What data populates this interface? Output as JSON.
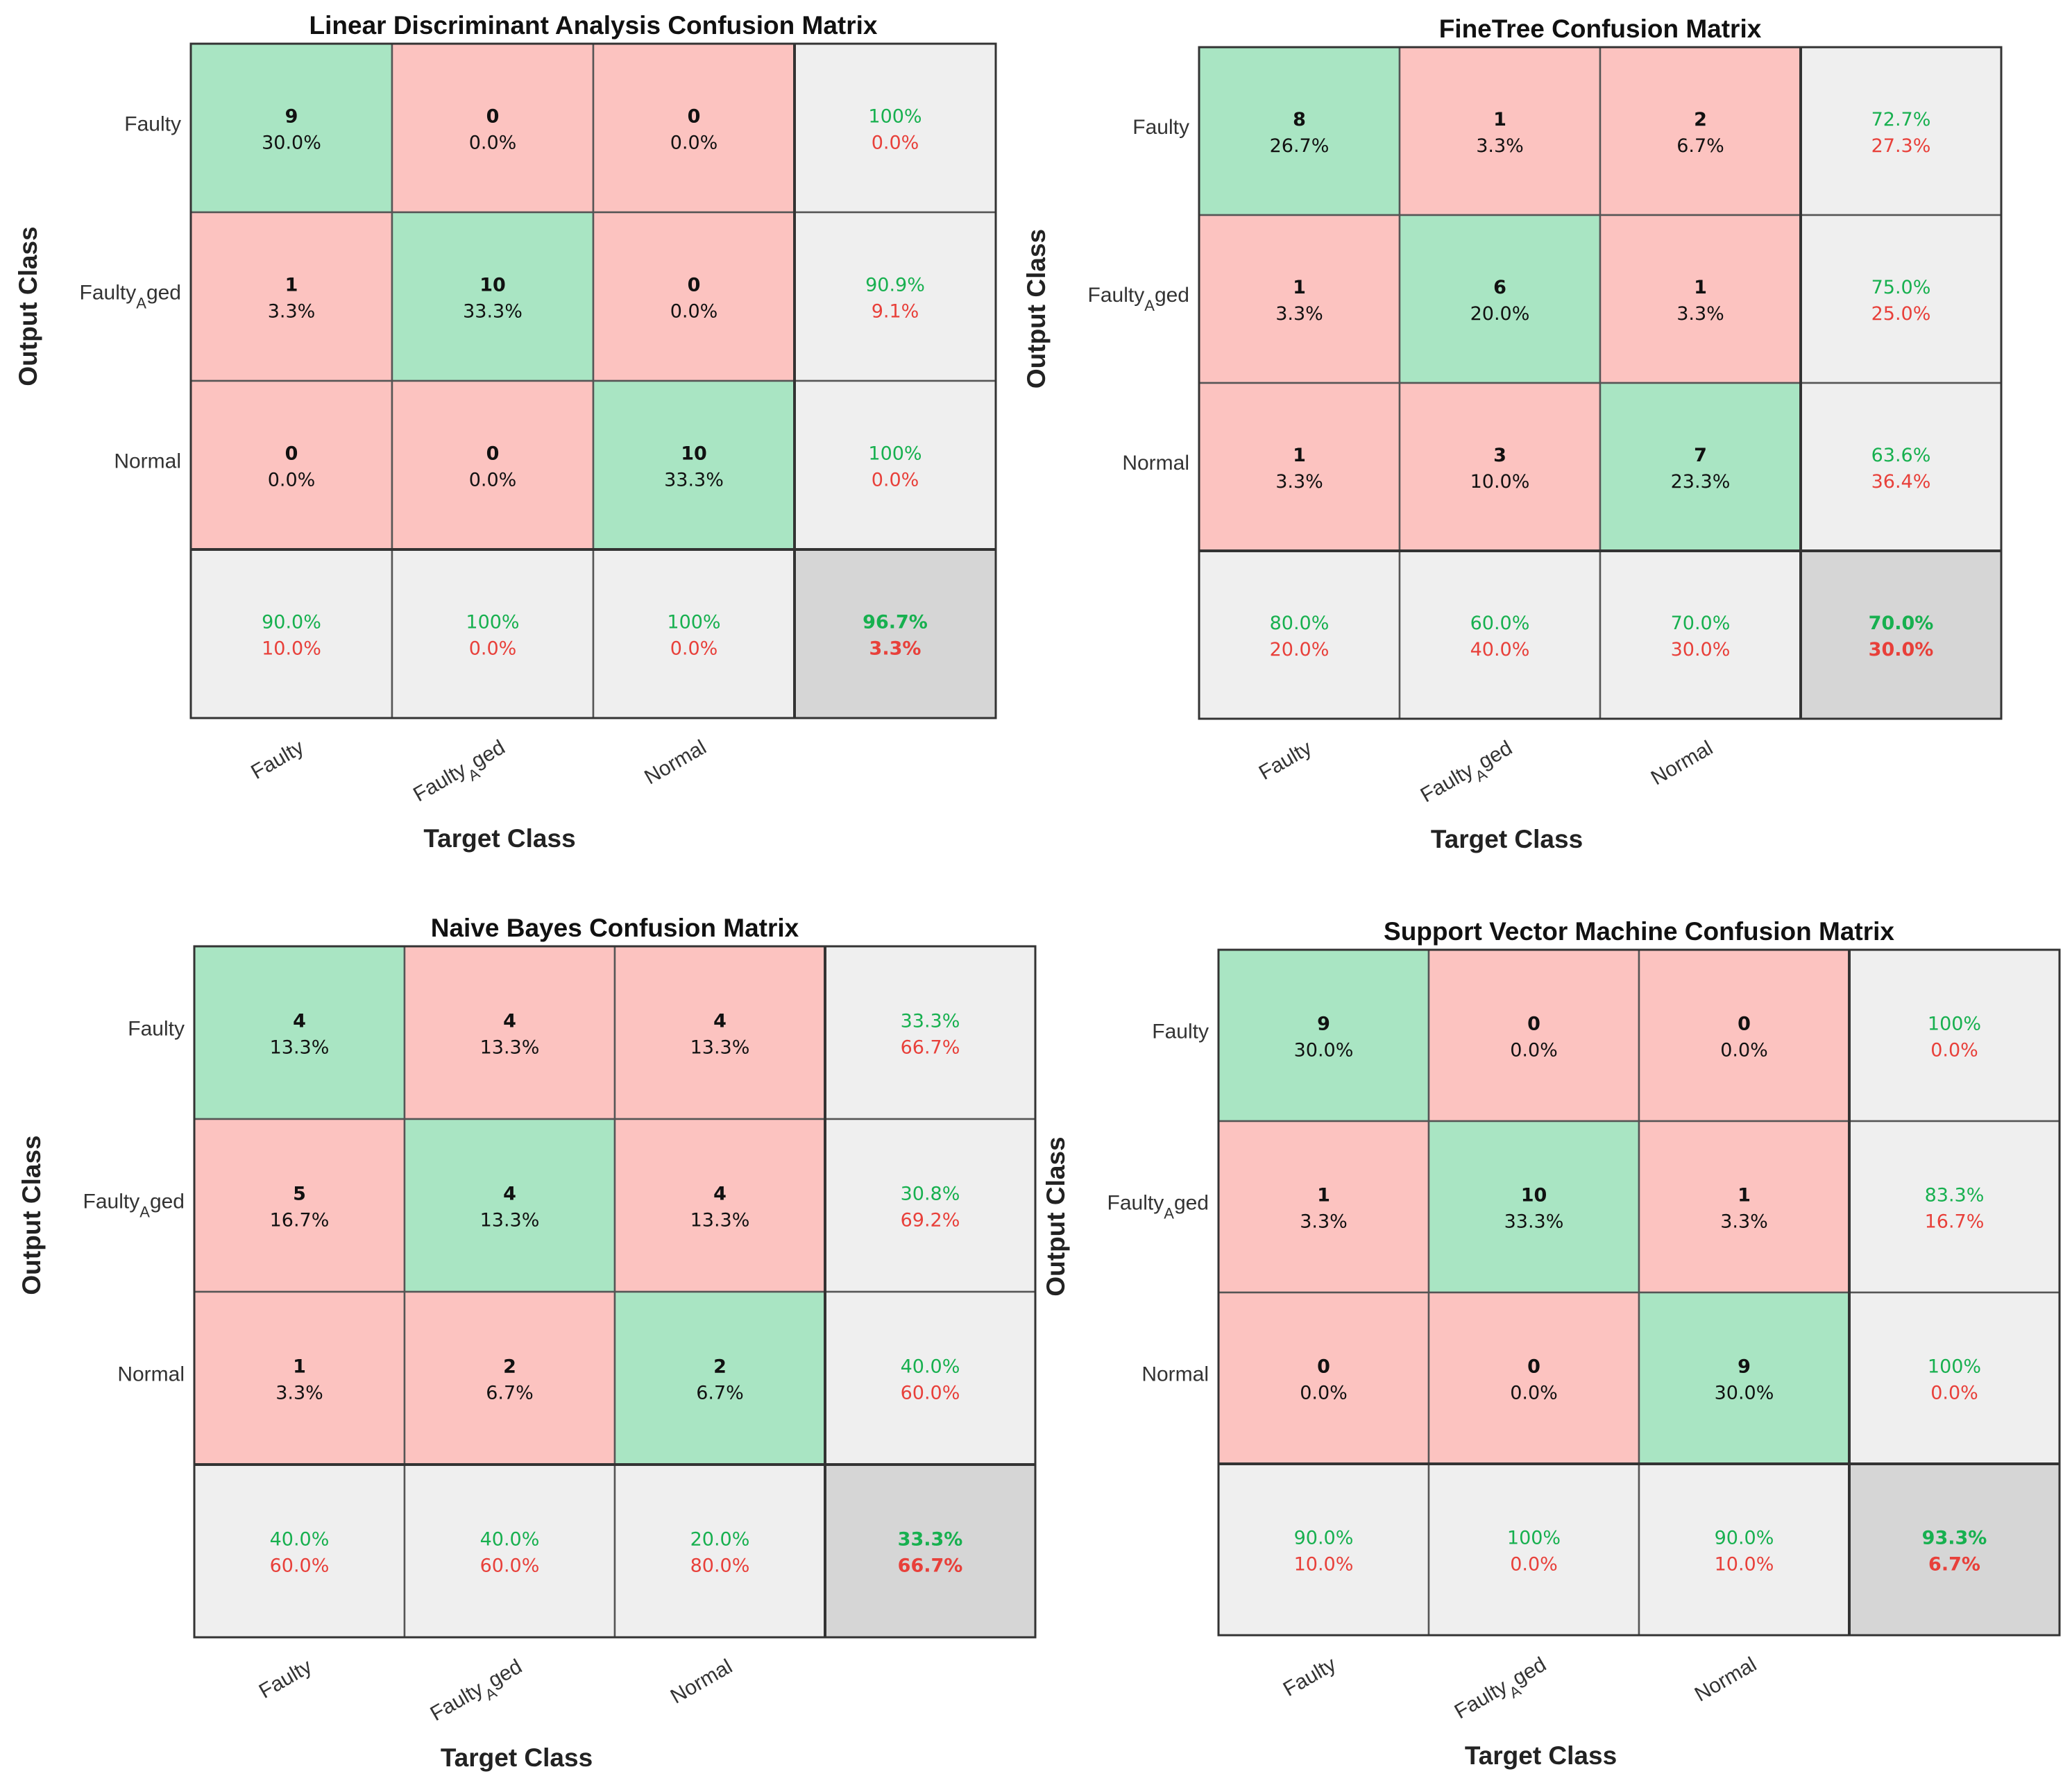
{
  "colors": {
    "correct_cell": "#a9e5c3",
    "wrong_cell": "#fcc3c0",
    "summary_cell": "#efefef",
    "overall_cell": "#d6d6d6",
    "good_text": "#17b04f",
    "bad_text": "#e8403a",
    "grid_line": "#555555"
  },
  "chart_data": [
    {
      "type": "heatmap",
      "title": "Linear Discriminant Analysis Confusion Matrix",
      "xlabel": "Target Class",
      "ylabel": "Output Class",
      "row_labels": [
        "Faulty",
        "Faulty",
        "Normal"
      ],
      "row_label_subscripts": [
        "",
        "A",
        ""
      ],
      "row_label_suffixes": [
        "",
        "ged",
        ""
      ],
      "col_labels": [
        "Faulty",
        "Faulty",
        "Normal"
      ],
      "col_label_subscripts": [
        "",
        "A",
        ""
      ],
      "col_label_suffixes": [
        "",
        "ged",
        ""
      ],
      "counts": [
        [
          9,
          0,
          0
        ],
        [
          1,
          10,
          0
        ],
        [
          0,
          0,
          10
        ]
      ],
      "percents": [
        [
          "30.0%",
          "0.0%",
          "0.0%"
        ],
        [
          "3.3%",
          "33.3%",
          "0.0%"
        ],
        [
          "0.0%",
          "0.0%",
          "33.3%"
        ]
      ],
      "row_summary": [
        [
          "100%",
          "0.0%"
        ],
        [
          "90.9%",
          "9.1%"
        ],
        [
          "100%",
          "0.0%"
        ]
      ],
      "col_summary": [
        [
          "90.0%",
          "10.0%"
        ],
        [
          "100%",
          "0.0%"
        ],
        [
          "100%",
          "0.0%"
        ]
      ],
      "overall": [
        "96.7%",
        "3.3%"
      ]
    },
    {
      "type": "heatmap",
      "title": "FineTree Confusion Matrix",
      "xlabel": "Target Class",
      "ylabel": "Output Class",
      "row_labels": [
        "Faulty",
        "Faulty",
        "Normal"
      ],
      "row_label_subscripts": [
        "",
        "A",
        ""
      ],
      "row_label_suffixes": [
        "",
        "ged",
        ""
      ],
      "col_labels": [
        "Faulty",
        "Faulty",
        "Normal"
      ],
      "col_label_subscripts": [
        "",
        "A",
        ""
      ],
      "col_label_suffixes": [
        "",
        "ged",
        ""
      ],
      "counts": [
        [
          8,
          1,
          2
        ],
        [
          1,
          6,
          1
        ],
        [
          1,
          3,
          7
        ]
      ],
      "percents": [
        [
          "26.7%",
          "3.3%",
          "6.7%"
        ],
        [
          "3.3%",
          "20.0%",
          "3.3%"
        ],
        [
          "3.3%",
          "10.0%",
          "23.3%"
        ]
      ],
      "row_summary": [
        [
          "72.7%",
          "27.3%"
        ],
        [
          "75.0%",
          "25.0%"
        ],
        [
          "63.6%",
          "36.4%"
        ]
      ],
      "col_summary": [
        [
          "80.0%",
          "20.0%"
        ],
        [
          "60.0%",
          "40.0%"
        ],
        [
          "70.0%",
          "30.0%"
        ]
      ],
      "overall": [
        "70.0%",
        "30.0%"
      ]
    },
    {
      "type": "heatmap",
      "title": "Naive Bayes Confusion Matrix",
      "xlabel": "Target Class",
      "ylabel": "Output Class",
      "row_labels": [
        "Faulty",
        "Faulty",
        "Normal"
      ],
      "row_label_subscripts": [
        "",
        "A",
        ""
      ],
      "row_label_suffixes": [
        "",
        "ged",
        ""
      ],
      "col_labels": [
        "Faulty",
        "Faulty",
        "Normal"
      ],
      "col_label_subscripts": [
        "",
        "A",
        ""
      ],
      "col_label_suffixes": [
        "",
        "ged",
        ""
      ],
      "counts": [
        [
          4,
          4,
          4
        ],
        [
          5,
          4,
          4
        ],
        [
          1,
          2,
          2
        ]
      ],
      "percents": [
        [
          "13.3%",
          "13.3%",
          "13.3%"
        ],
        [
          "16.7%",
          "13.3%",
          "13.3%"
        ],
        [
          "3.3%",
          "6.7%",
          "6.7%"
        ]
      ],
      "row_summary": [
        [
          "33.3%",
          "66.7%"
        ],
        [
          "30.8%",
          "69.2%"
        ],
        [
          "40.0%",
          "60.0%"
        ]
      ],
      "col_summary": [
        [
          "40.0%",
          "60.0%"
        ],
        [
          "40.0%",
          "60.0%"
        ],
        [
          "20.0%",
          "80.0%"
        ]
      ],
      "overall": [
        "33.3%",
        "66.7%"
      ]
    },
    {
      "type": "heatmap",
      "title": "Support Vector Machine Confusion Matrix",
      "xlabel": "Target Class",
      "ylabel": "Output Class",
      "row_labels": [
        "Faulty",
        "Faulty",
        "Normal"
      ],
      "row_label_subscripts": [
        "",
        "A",
        ""
      ],
      "row_label_suffixes": [
        "",
        "ged",
        ""
      ],
      "col_labels": [
        "Faulty",
        "Faulty",
        "Normal"
      ],
      "col_label_subscripts": [
        "",
        "A",
        ""
      ],
      "col_label_suffixes": [
        "",
        "ged",
        ""
      ],
      "counts": [
        [
          9,
          0,
          0
        ],
        [
          1,
          10,
          1
        ],
        [
          0,
          0,
          9
        ]
      ],
      "percents": [
        [
          "30.0%",
          "0.0%",
          "0.0%"
        ],
        [
          "3.3%",
          "33.3%",
          "3.3%"
        ],
        [
          "0.0%",
          "0.0%",
          "30.0%"
        ]
      ],
      "row_summary": [
        [
          "100%",
          "0.0%"
        ],
        [
          "83.3%",
          "16.7%"
        ],
        [
          "100%",
          "0.0%"
        ]
      ],
      "col_summary": [
        [
          "90.0%",
          "10.0%"
        ],
        [
          "100%",
          "0.0%"
        ],
        [
          "90.0%",
          "10.0%"
        ]
      ],
      "overall": [
        "93.3%",
        "6.7%"
      ]
    }
  ]
}
